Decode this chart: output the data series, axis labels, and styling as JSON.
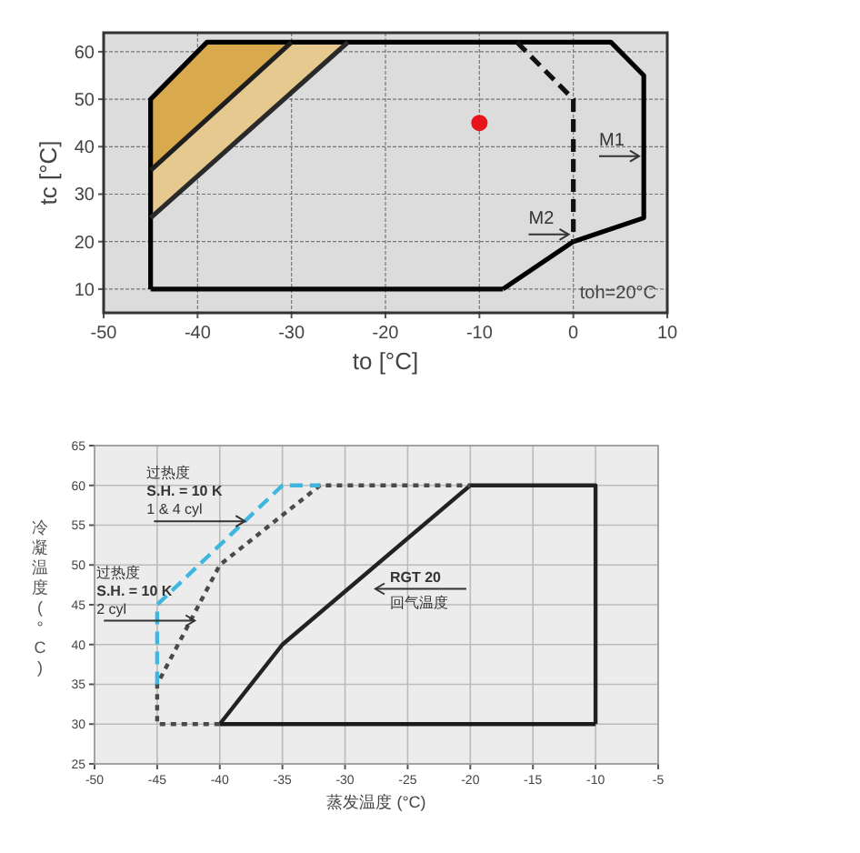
{
  "chart_data": [
    {
      "type": "line",
      "xlabel": "to [°C]",
      "ylabel": "tc [°C]",
      "xlim": [
        -50,
        10
      ],
      "ylim": [
        5,
        64
      ],
      "xticks": [
        -50,
        -40,
        -30,
        -20,
        -10,
        0,
        10
      ],
      "yticks": [
        10,
        20,
        30,
        40,
        50,
        60
      ],
      "grid": true,
      "series": [
        {
          "color": "#000000",
          "line_style": "solid",
          "x": [
            -45,
            -45,
            -39,
            4,
            7.5,
            7.5,
            0,
            -7.5
          ],
          "values": [
            10,
            50,
            62,
            62,
            55,
            25,
            20,
            10
          ]
        },
        {
          "color": "#080808",
          "line_style": "solid",
          "x": [
            -45,
            -7.5
          ],
          "values": [
            10,
            10
          ]
        },
        {
          "color": "#1e1e1e",
          "line_style": "solid",
          "x": [
            -45,
            -30
          ],
          "values": [
            35,
            62
          ]
        },
        {
          "color": "#2a2a2a",
          "line_style": "solid",
          "x": [
            -45,
            -24
          ],
          "values": [
            25,
            62
          ]
        },
        {
          "color": "#121212",
          "line_style": "dashed",
          "x": [
            -6,
            0,
            0
          ],
          "values": [
            62,
            50,
            20
          ]
        },
        {
          "type": "scatter",
          "color": "#e8141b",
          "marker": "circle",
          "x": [
            -10
          ],
          "values": [
            45
          ]
        }
      ],
      "annotations": [
        "M1",
        "M2",
        "toh=20°C"
      ]
    },
    {
      "type": "line",
      "xlabel": "蒸发温度 (°C)",
      "ylabel": "冷凝温度 (°C)",
      "xlim": [
        -50,
        -5
      ],
      "ylim": [
        25,
        65
      ],
      "xticks": [
        -50,
        -45,
        -40,
        -35,
        -30,
        -25,
        -20,
        -15,
        -10,
        -5
      ],
      "yticks": [
        25,
        30,
        35,
        40,
        45,
        50,
        55,
        60,
        65
      ],
      "grid": true,
      "series": [
        {
          "color": "#222222",
          "line_style": "solid",
          "x": [
            -40,
            -35,
            -20,
            -10,
            -10
          ],
          "values": [
            30,
            40,
            60,
            60,
            30
          ]
        },
        {
          "color": "#1a1a1a",
          "line_style": "solid",
          "x": [
            -40,
            -10
          ],
          "values": [
            30,
            30
          ]
        },
        {
          "color": "#4a4a4a",
          "line_style": "dotted",
          "x": [
            -40,
            -45,
            -45,
            -40,
            -32,
            -20
          ],
          "values": [
            30,
            30,
            35,
            50,
            60,
            60
          ]
        },
        {
          "color": "#3fb6e0",
          "line_style": "dashed",
          "x": [
            -45,
            -45,
            -35,
            -32
          ],
          "values": [
            35,
            45,
            60,
            60
          ]
        }
      ],
      "annotations": [
        {
          "text": "过热度\nS.H. = 10 K\n1 & 4 cyl",
          "x": -38,
          "y": 55.5
        },
        {
          "text": "过热度\nS.H. = 10 K\n2 cyl",
          "x": -42,
          "y": 43
        },
        "RGT 20\n回气温度"
      ]
    }
  ]
}
